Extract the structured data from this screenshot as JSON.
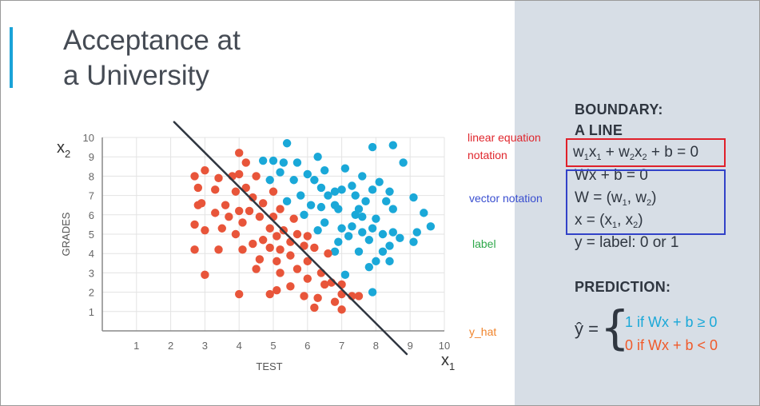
{
  "title": {
    "line1": "Acceptance at",
    "line2": "a University"
  },
  "annotations": {
    "linear_equation": [
      "linear equation",
      "notation"
    ],
    "vector_notation": "vector notation",
    "label": "label",
    "y_hat": "y_hat"
  },
  "right_panel": {
    "boundary_heading": [
      "BOUNDARY:",
      "A LINE"
    ],
    "equation": "w1x1 + w2x2 + b = 0",
    "vector_lines": [
      "Wx + b = 0",
      "W = (w1, w2)",
      "x = (x1, x2)"
    ],
    "label_line": "y = label: 0 or 1",
    "prediction_heading": "PREDICTION:",
    "y_hat_symbol": "ŷ =",
    "prediction_1": "1 if Wx + b ≥ 0",
    "prediction_0": "0 if Wx + b < 0"
  },
  "colors": {
    "accepted": "#1aa8d8",
    "rejected": "#e8553a",
    "boundary": "#2f3640",
    "accent": "#1aa3d8",
    "panel": "#d7dee6"
  },
  "chart_data": {
    "type": "scatter",
    "xlabel": "TEST",
    "ylabel": "GRADES",
    "x_axis_symbol": "x1",
    "y_axis_symbol": "x2",
    "xlim": [
      0,
      10
    ],
    "ylim": [
      0,
      10
    ],
    "x_ticks": [
      1,
      2,
      3,
      4,
      5,
      6,
      7,
      8,
      9,
      10
    ],
    "y_ticks": [
      1,
      2,
      3,
      4,
      5,
      6,
      7,
      8,
      9,
      10
    ],
    "grid": true,
    "boundary_line": [
      [
        2.1,
        10.8
      ],
      [
        8.9,
        -1.2
      ]
    ],
    "series": [
      {
        "color": "#1aa8d8",
        "points": [
          [
            5.4,
            9.7
          ],
          [
            8.5,
            9.6
          ],
          [
            7.9,
            9.5
          ],
          [
            6.3,
            9.0
          ],
          [
            4.7,
            8.8
          ],
          [
            5.0,
            8.8
          ],
          [
            5.3,
            8.7
          ],
          [
            5.7,
            8.7
          ],
          [
            8.8,
            8.7
          ],
          [
            7.1,
            8.4
          ],
          [
            6.5,
            8.3
          ],
          [
            5.2,
            8.2
          ],
          [
            6.0,
            8.1
          ],
          [
            7.6,
            8.0
          ],
          [
            4.9,
            7.8
          ],
          [
            5.6,
            7.8
          ],
          [
            6.2,
            7.8
          ],
          [
            8.1,
            7.7
          ],
          [
            7.3,
            7.5
          ],
          [
            6.4,
            7.4
          ],
          [
            7.0,
            7.3
          ],
          [
            7.9,
            7.3
          ],
          [
            6.8,
            7.2
          ],
          [
            8.4,
            7.2
          ],
          [
            5.8,
            7.0
          ],
          [
            6.6,
            7.0
          ],
          [
            7.4,
            7.0
          ],
          [
            5.4,
            6.7
          ],
          [
            6.1,
            6.5
          ],
          [
            6.8,
            6.5
          ],
          [
            7.7,
            6.7
          ],
          [
            8.3,
            6.7
          ],
          [
            9.1,
            6.9
          ],
          [
            6.4,
            6.4
          ],
          [
            6.9,
            6.3
          ],
          [
            7.5,
            6.3
          ],
          [
            8.5,
            6.3
          ],
          [
            9.4,
            6.1
          ],
          [
            5.9,
            6.0
          ],
          [
            7.4,
            6.0
          ],
          [
            7.6,
            5.9
          ],
          [
            8.0,
            5.8
          ],
          [
            6.5,
            5.6
          ],
          [
            6.3,
            5.2
          ],
          [
            7.0,
            5.3
          ],
          [
            7.3,
            5.4
          ],
          [
            7.9,
            5.3
          ],
          [
            8.2,
            5.0
          ],
          [
            8.5,
            5.1
          ],
          [
            9.2,
            5.1
          ],
          [
            7.6,
            5.1
          ],
          [
            8.7,
            4.8
          ],
          [
            9.6,
            5.4
          ],
          [
            7.2,
            4.9
          ],
          [
            6.9,
            4.6
          ],
          [
            9.1,
            4.6
          ],
          [
            7.8,
            4.7
          ],
          [
            8.4,
            4.4
          ],
          [
            6.8,
            4.1
          ],
          [
            7.5,
            4.1
          ],
          [
            8.2,
            4.1
          ],
          [
            8.0,
            3.6
          ],
          [
            8.4,
            3.6
          ],
          [
            7.8,
            3.3
          ],
          [
            7.1,
            2.9
          ],
          [
            7.9,
            2.0
          ]
        ]
      },
      {
        "color": "#e8553a",
        "points": [
          [
            4.0,
            9.2
          ],
          [
            4.2,
            8.7
          ],
          [
            4.0,
            8.1
          ],
          [
            3.0,
            8.3
          ],
          [
            2.7,
            8.0
          ],
          [
            3.4,
            7.9
          ],
          [
            3.8,
            8.0
          ],
          [
            4.5,
            8.0
          ],
          [
            4.2,
            7.4
          ],
          [
            2.8,
            7.4
          ],
          [
            3.3,
            7.3
          ],
          [
            3.9,
            7.2
          ],
          [
            4.4,
            6.9
          ],
          [
            5.0,
            7.2
          ],
          [
            2.8,
            6.5
          ],
          [
            2.9,
            6.6
          ],
          [
            3.6,
            6.5
          ],
          [
            4.7,
            6.6
          ],
          [
            5.2,
            6.3
          ],
          [
            3.3,
            6.1
          ],
          [
            4.0,
            6.2
          ],
          [
            3.7,
            5.9
          ],
          [
            4.3,
            6.2
          ],
          [
            4.6,
            5.9
          ],
          [
            5.0,
            5.9
          ],
          [
            5.6,
            5.8
          ],
          [
            2.7,
            5.5
          ],
          [
            3.5,
            5.3
          ],
          [
            4.1,
            5.6
          ],
          [
            3.0,
            5.2
          ],
          [
            4.9,
            5.3
          ],
          [
            5.3,
            5.2
          ],
          [
            5.7,
            5.0
          ],
          [
            6.0,
            4.9
          ],
          [
            3.9,
            5.0
          ],
          [
            4.7,
            4.7
          ],
          [
            5.1,
            4.9
          ],
          [
            4.4,
            4.5
          ],
          [
            5.5,
            4.6
          ],
          [
            5.9,
            4.4
          ],
          [
            6.2,
            4.3
          ],
          [
            4.9,
            4.3
          ],
          [
            5.2,
            4.2
          ],
          [
            3.4,
            4.2
          ],
          [
            4.1,
            4.2
          ],
          [
            2.7,
            4.2
          ],
          [
            6.6,
            4.0
          ],
          [
            5.5,
            3.9
          ],
          [
            4.6,
            3.7
          ],
          [
            5.1,
            3.6
          ],
          [
            6.0,
            3.6
          ],
          [
            4.5,
            3.2
          ],
          [
            5.7,
            3.2
          ],
          [
            5.2,
            3.0
          ],
          [
            6.4,
            3.0
          ],
          [
            3.0,
            2.9
          ],
          [
            6.0,
            2.7
          ],
          [
            6.7,
            2.5
          ],
          [
            5.5,
            2.3
          ],
          [
            5.1,
            2.1
          ],
          [
            6.5,
            2.4
          ],
          [
            7.0,
            2.4
          ],
          [
            4.0,
            1.9
          ],
          [
            4.9,
            1.9
          ],
          [
            5.9,
            1.8
          ],
          [
            6.3,
            1.7
          ],
          [
            6.8,
            1.5
          ],
          [
            7.0,
            1.9
          ],
          [
            7.3,
            1.8
          ],
          [
            7.0,
            1.1
          ],
          [
            6.2,
            1.2
          ],
          [
            7.5,
            1.8
          ]
        ]
      }
    ]
  }
}
